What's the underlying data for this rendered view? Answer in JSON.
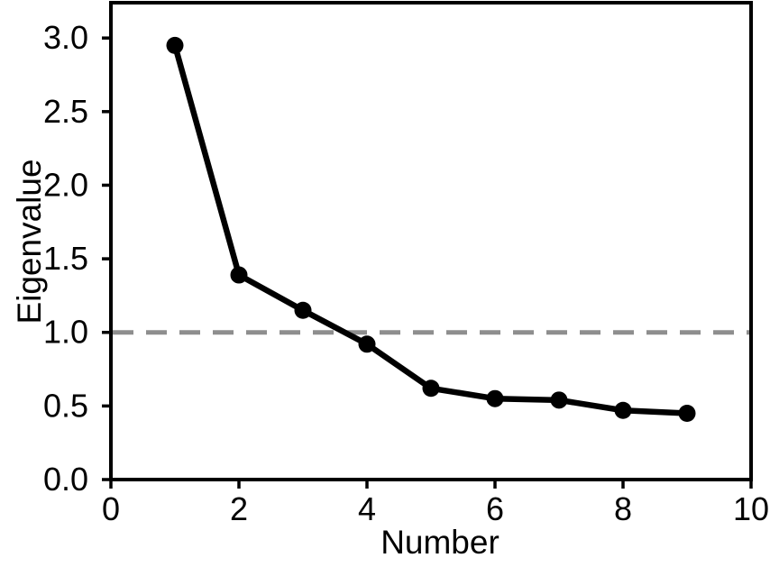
{
  "chart_data": {
    "type": "line",
    "title": "",
    "xlabel": "Number",
    "ylabel": "Eigenvalue",
    "x": [
      1,
      2,
      3,
      4,
      5,
      6,
      7,
      8,
      9
    ],
    "y": [
      2.95,
      1.39,
      1.15,
      0.92,
      0.62,
      0.55,
      0.54,
      0.47,
      0.45
    ],
    "xlim": [
      0,
      10
    ],
    "ylim": [
      0,
      3.24
    ],
    "x_ticks": [
      0,
      2,
      4,
      6,
      8,
      10
    ],
    "x_tick_labels": [
      "0",
      "2",
      "4",
      "6",
      "8",
      "10"
    ],
    "y_ticks": [
      0,
      0.5,
      1,
      1.5,
      2,
      2.5,
      3
    ],
    "y_tick_labels": [
      "0.0",
      "0.5",
      "1.0",
      "1.5",
      "2.0",
      "2.5",
      "3.0"
    ],
    "reference_line": {
      "y": 1.0,
      "style": "dashed",
      "color": "#8e8e8e"
    },
    "grid": false,
    "legend": "none",
    "line_color": "#000000",
    "marker": "circle",
    "marker_color": "#000000",
    "frame_color": "#000000",
    "background": "#ffffff"
  }
}
